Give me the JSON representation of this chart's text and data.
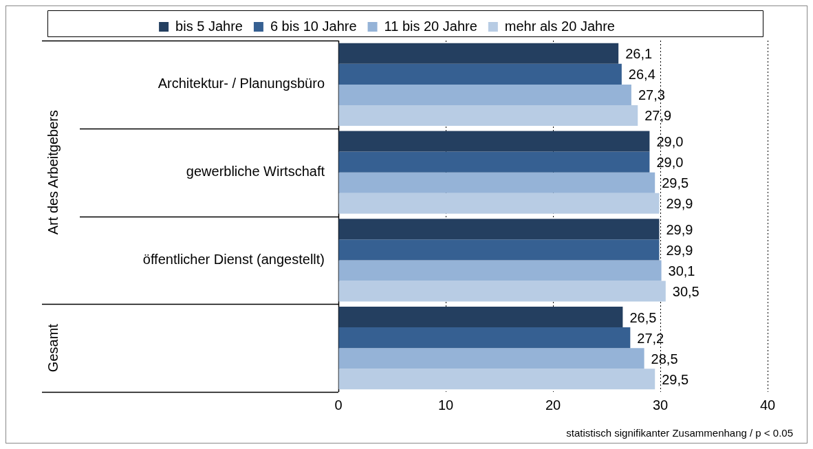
{
  "chart_data": {
    "type": "bar",
    "orientation": "horizontal",
    "categories": [
      "Architektur- / Planungsbüro",
      "gewerbliche Wirtschaft",
      "öffentlicher Dienst (angestellt)",
      null
    ],
    "series": [
      {
        "name": "bis 5 Jahre",
        "color": "#243f60",
        "values": [
          26.1,
          29.0,
          29.9,
          26.5
        ],
        "value_labels": [
          "26,1",
          "29,0",
          "29,9",
          "26,5"
        ]
      },
      {
        "name": "6 bis 10 Jahre",
        "color": "#366092",
        "values": [
          26.4,
          29.0,
          29.9,
          27.2
        ],
        "value_labels": [
          "26,4",
          "29,0",
          "29,9",
          "27,2"
        ]
      },
      {
        "name": "11 bis 20 Jahre",
        "color": "#95b3d7",
        "values": [
          27.3,
          29.5,
          30.1,
          28.5
        ],
        "value_labels": [
          "27,3",
          "29,5",
          "30,1",
          "28,5"
        ]
      },
      {
        "name": "mehr als 20 Jahre",
        "color": "#b8cce4",
        "values": [
          27.9,
          29.9,
          30.5,
          29.5
        ],
        "value_labels": [
          "27,9",
          "29,9",
          "30,5",
          "29,5"
        ]
      }
    ],
    "xlim": [
      0,
      40
    ],
    "xticks": [
      0,
      10,
      20,
      30,
      40
    ],
    "grid": "x",
    "legend": "top",
    "annotations": [
      "Art des Arbeitgebers",
      "Gesamt",
      "statistisch signifikanter Zusammenhang / p < 0.05"
    ]
  }
}
